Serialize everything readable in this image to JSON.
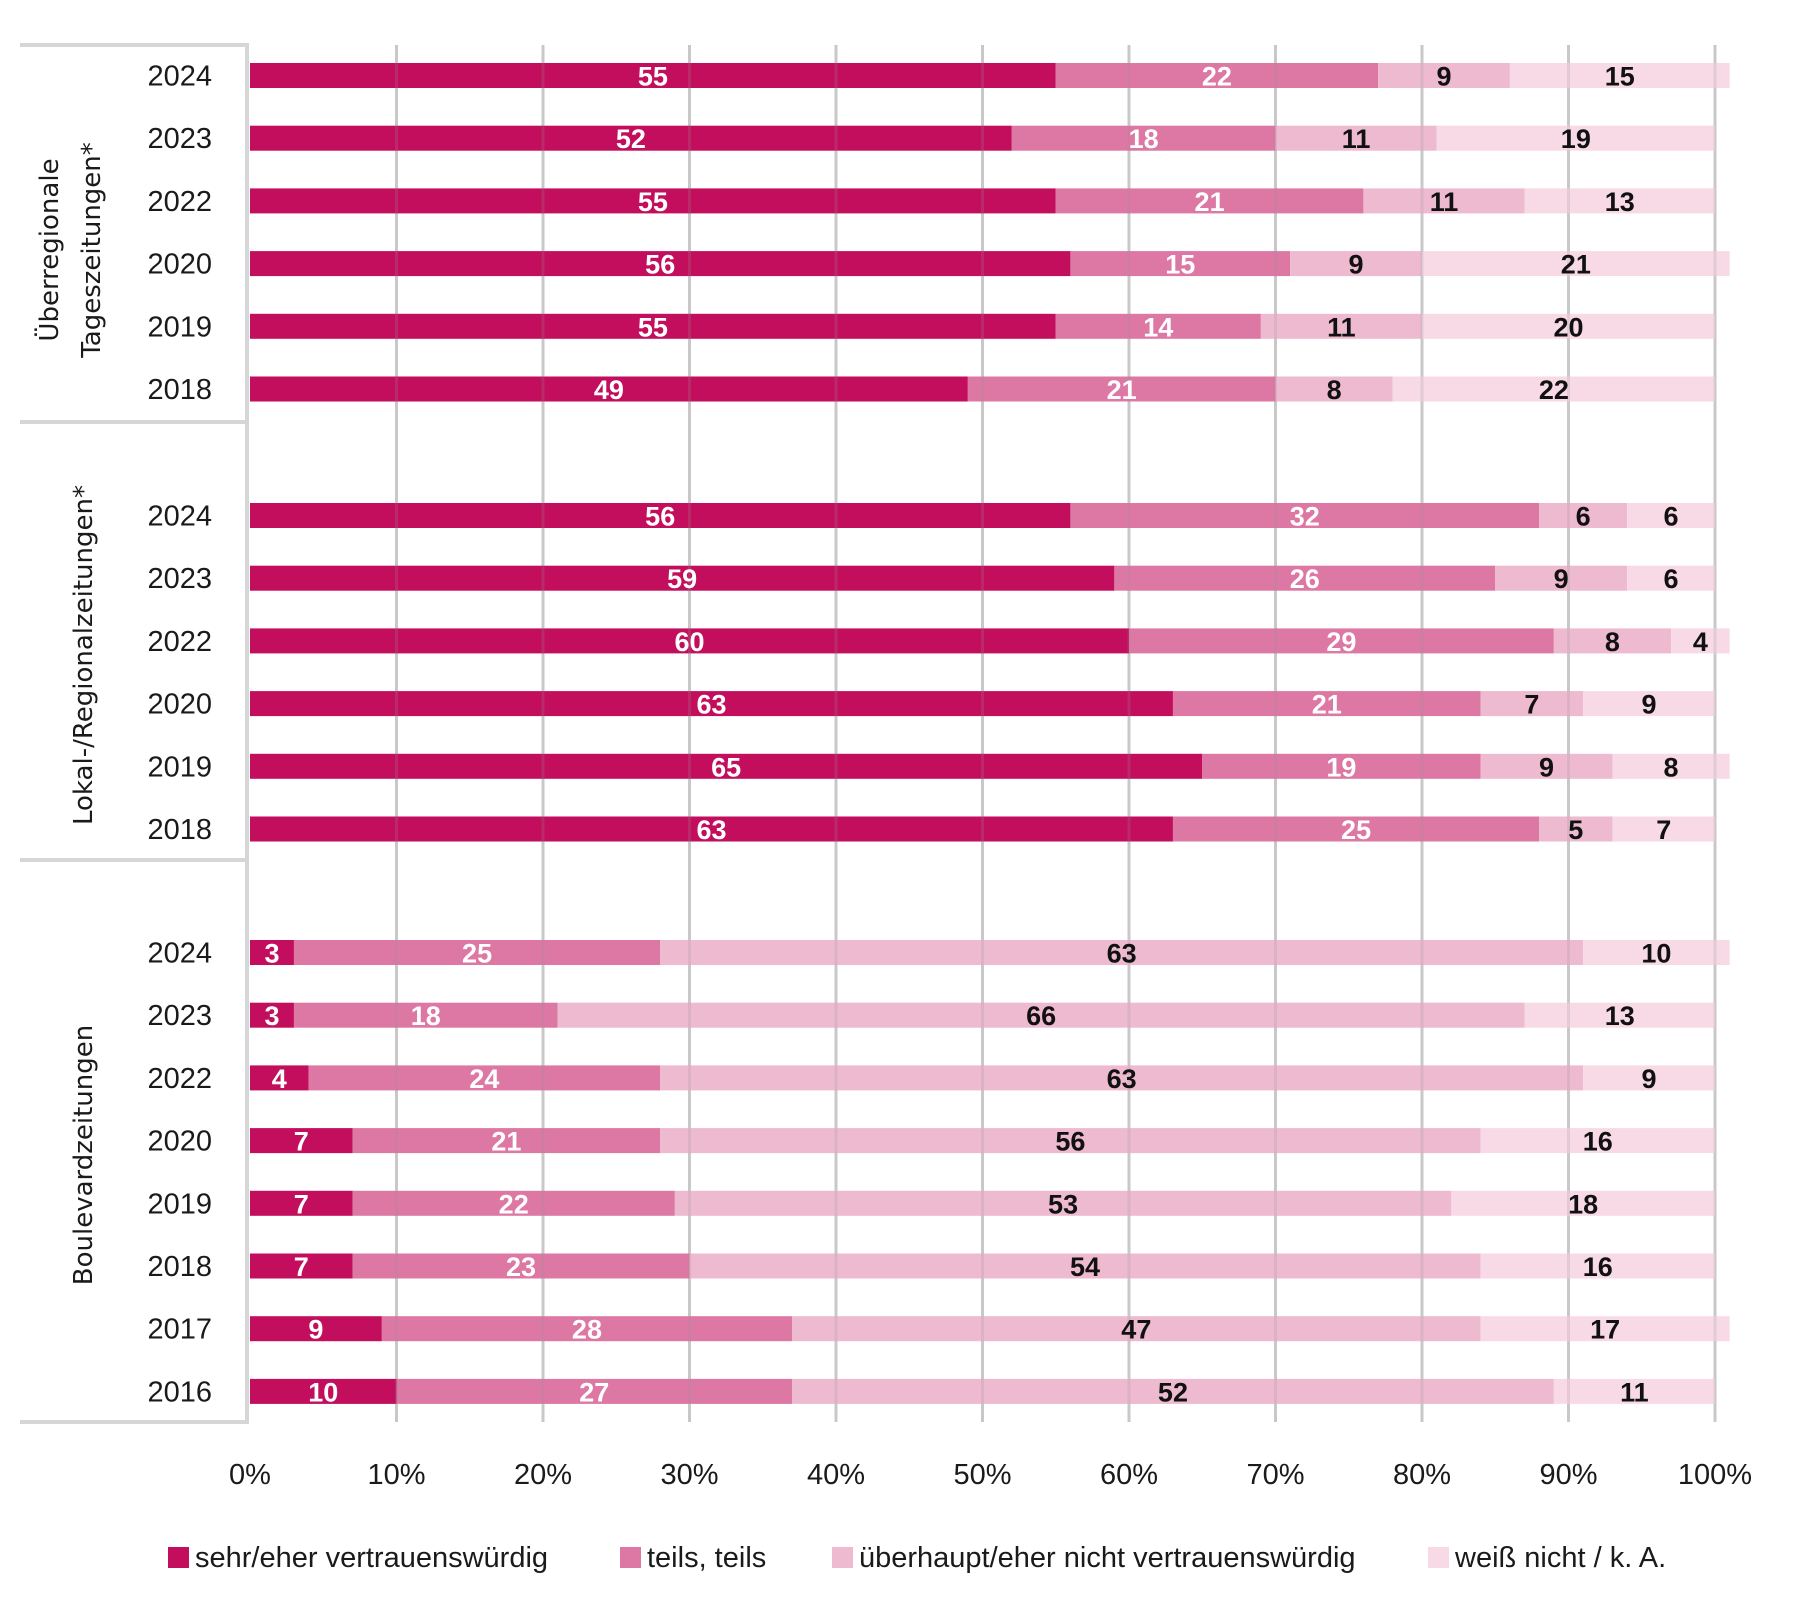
{
  "chart_data": {
    "type": "bar",
    "orientation": "horizontal",
    "stacked": "percent",
    "title": "",
    "xlabel": "",
    "ylabel": "",
    "xlim": [
      0,
      100
    ],
    "x_ticks": [
      "0%",
      "10%",
      "20%",
      "30%",
      "40%",
      "50%",
      "60%",
      "70%",
      "80%",
      "90%",
      "100%"
    ],
    "grid": true,
    "legend_position": "bottom",
    "series": [
      {
        "name": "sehr/eher vertrauenswürdig",
        "color": "#C20E5C",
        "label_color": "#ffffff"
      },
      {
        "name": "teils, teils",
        "color": "#DD77A3",
        "label_color": "#ffffff"
      },
      {
        "name": "überhaupt/eher nicht vertrauenswürdig",
        "color": "#EDBAD0",
        "label_color": "#111111"
      },
      {
        "name": "weiß nicht / k. A.",
        "color": "#F8DAE6",
        "label_color": "#111111"
      }
    ],
    "groups": [
      {
        "label_lines": [
          "Überregionale",
          "Tageszeitungen*"
        ],
        "rows": [
          {
            "year": "2024",
            "values": [
              55,
              22,
              9,
              15
            ]
          },
          {
            "year": "2023",
            "values": [
              52,
              18,
              11,
              19
            ]
          },
          {
            "year": "2022",
            "values": [
              55,
              21,
              11,
              13
            ]
          },
          {
            "year": "2020",
            "values": [
              56,
              15,
              9,
              21
            ]
          },
          {
            "year": "2019",
            "values": [
              55,
              14,
              11,
              20
            ]
          },
          {
            "year": "2018",
            "values": [
              49,
              21,
              8,
              22
            ]
          }
        ]
      },
      {
        "label_lines": [
          "Lokal-/Regionalzeitungen*"
        ],
        "rows": [
          {
            "year": "2024",
            "values": [
              56,
              32,
              6,
              6
            ]
          },
          {
            "year": "2023",
            "values": [
              59,
              26,
              9,
              6
            ]
          },
          {
            "year": "2022",
            "values": [
              60,
              29,
              8,
              4
            ]
          },
          {
            "year": "2020",
            "values": [
              63,
              21,
              7,
              9
            ]
          },
          {
            "year": "2019",
            "values": [
              65,
              19,
              9,
              8
            ]
          },
          {
            "year": "2018",
            "values": [
              63,
              25,
              5,
              7
            ]
          }
        ]
      },
      {
        "label_lines": [
          "Boulevardzeitungen"
        ],
        "rows": [
          {
            "year": "2024",
            "values": [
              3,
              25,
              63,
              10
            ]
          },
          {
            "year": "2023",
            "values": [
              3,
              18,
              66,
              13
            ]
          },
          {
            "year": "2022",
            "values": [
              4,
              24,
              63,
              9
            ]
          },
          {
            "year": "2020",
            "values": [
              7,
              21,
              56,
              16
            ]
          },
          {
            "year": "2019",
            "values": [
              7,
              22,
              53,
              18
            ]
          },
          {
            "year": "2018",
            "values": [
              7,
              23,
              54,
              16
            ]
          },
          {
            "year": "2017",
            "values": [
              9,
              28,
              47,
              17
            ]
          },
          {
            "year": "2016",
            "values": [
              10,
              27,
              52,
              11
            ]
          }
        ]
      }
    ]
  }
}
